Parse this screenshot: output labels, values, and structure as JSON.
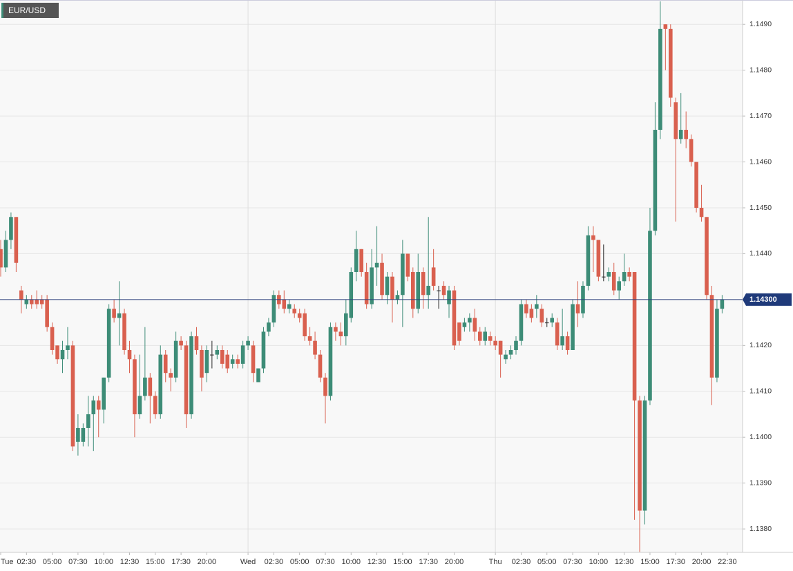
{
  "chart_data": {
    "type": "candlestick",
    "title": "EUR/USD",
    "categories": [
      "Tue",
      null,
      null,
      null,
      null,
      "02:30",
      null,
      null,
      null,
      null,
      "05:00",
      null,
      null,
      null,
      null,
      "07:30",
      null,
      null,
      null,
      null,
      "10:00",
      null,
      null,
      null,
      null,
      "12:30",
      null,
      null,
      null,
      null,
      "15:00",
      null,
      null,
      null,
      null,
      "17:30",
      null,
      null,
      null,
      null,
      "20:00",
      null,
      null,
      null,
      null,
      null,
      null,
      null,
      "Wed",
      null,
      null,
      null,
      null,
      "02:30",
      null,
      null,
      null,
      null,
      "05:00",
      null,
      null,
      null,
      null,
      "07:30",
      null,
      null,
      null,
      null,
      "10:00",
      null,
      null,
      null,
      null,
      "12:30",
      null,
      null,
      null,
      null,
      "15:00",
      null,
      null,
      null,
      null,
      "17:30",
      null,
      null,
      null,
      null,
      "20:00",
      null,
      null,
      null,
      null,
      null,
      null,
      null,
      "Thu",
      null,
      null,
      null,
      null,
      "02:30",
      null,
      null,
      null,
      null,
      "05:00",
      null,
      null,
      null,
      null,
      "07:30",
      null,
      null,
      null,
      null,
      "10:00",
      null,
      null,
      null,
      null,
      "12:30",
      null,
      null,
      null,
      null,
      "15:00",
      null,
      null,
      null,
      null,
      "17:30",
      null,
      null,
      null,
      null,
      "20:00",
      null,
      null,
      null,
      null,
      "22:30"
    ],
    "open": [
      1.1441,
      1.1437,
      1.1443,
      1.1448,
      1.1432,
      1.1429,
      1.143,
      1.143,
      1.143,
      1.143,
      1.1424,
      1.142,
      1.1417,
      1.1419,
      1.142,
      1.1399,
      1.1399,
      1.1402,
      1.1405,
      1.1408,
      1.1406,
      1.1413,
      1.1428,
      1.1426,
      1.1427,
      1.1419,
      1.1417,
      1.1405,
      1.1409,
      1.1413,
      1.1409,
      1.1405,
      1.1418,
      1.1414,
      1.1413,
      1.1421,
      1.142,
      1.1405,
      1.1422,
      1.1419,
      1.1414,
      1.1418,
      1.1418,
      1.1419,
      1.1418,
      1.1416,
      1.1417,
      1.1416,
      1.142,
      1.142,
      1.1412,
      1.1415,
      1.1423,
      1.1425,
      1.1431,
      1.143,
      1.1428,
      1.1428,
      1.1427,
      1.1427,
      1.1422,
      1.1421,
      1.1418,
      1.1413,
      1.1409,
      1.1424,
      1.1423,
      1.1422,
      1.1426,
      1.1436,
      1.1441,
      1.1436,
      1.1429,
      1.1437,
      1.1438,
      1.1431,
      1.1435,
      1.143,
      1.1431,
      1.144,
      1.1436,
      1.1428,
      1.1436,
      1.1431,
      1.1437,
      1.1432,
      1.1433,
      1.1429,
      1.1432,
      1.1425,
      1.1424,
      1.1425,
      1.1426,
      1.1423,
      1.1421,
      1.1422,
      1.1421,
      1.1421,
      1.1417,
      1.1418,
      1.1419,
      1.1421,
      1.1429,
      1.1428,
      1.1428,
      1.1428,
      1.1425,
      1.1425,
      1.1425,
      1.142,
      1.1422,
      1.1419,
      1.1429,
      1.1427,
      1.1433,
      1.1444,
      1.1443,
      1.1435,
      1.1435,
      1.1436,
      1.1432,
      1.1434,
      1.1436,
      1.1436,
      1.1408,
      1.1384,
      1.1408,
      1.1445,
      1.1467,
      1.149,
      1.1489,
      1.1473,
      1.1465,
      1.1467,
      1.1465,
      1.146,
      1.145,
      1.1448,
      1.1431,
      1.1413,
      1.1428,
      null
    ],
    "high": [
      1.1443,
      1.1445,
      1.1449,
      1.1448,
      1.1433,
      1.1431,
      1.1431,
      1.1432,
      1.1431,
      1.1431,
      1.1425,
      1.142,
      1.1421,
      1.1424,
      1.1421,
      1.1405,
      1.1403,
      1.1409,
      1.1409,
      1.1409,
      1.1413,
      1.1429,
      1.143,
      1.1434,
      1.1428,
      1.1421,
      1.1418,
      1.1418,
      1.1424,
      1.1414,
      1.141,
      1.142,
      1.1419,
      1.1415,
      1.1423,
      1.1422,
      1.1421,
      1.1423,
      1.1424,
      1.142,
      1.142,
      1.1421,
      1.142,
      1.142,
      1.1419,
      1.1418,
      1.1418,
      1.1421,
      1.1422,
      1.1421,
      1.1415,
      1.1424,
      1.1426,
      1.1432,
      1.1432,
      1.1432,
      1.143,
      1.1429,
      1.1428,
      1.1428,
      1.1424,
      1.1423,
      1.1419,
      1.1414,
      1.1425,
      1.1425,
      1.1425,
      1.143,
      1.1437,
      1.1445,
      1.1441,
      1.1438,
      1.1441,
      1.1446,
      1.144,
      1.1436,
      1.1436,
      1.1432,
      1.1443,
      1.144,
      1.1437,
      1.144,
      1.1437,
      1.1448,
      1.1441,
      1.1433,
      1.1434,
      1.1433,
      1.1433,
      1.1425,
      1.1426,
      1.1427,
      1.1428,
      1.1424,
      1.1424,
      1.1423,
      1.1422,
      1.1421,
      1.1419,
      1.142,
      1.1422,
      1.143,
      1.143,
      1.1429,
      1.1431,
      1.1429,
      1.1426,
      1.1427,
      1.1426,
      1.1428,
      1.1423,
      1.143,
      1.1434,
      1.1434,
      1.1446,
      1.1446,
      1.1443,
      1.1442,
      1.1437,
      1.1438,
      1.1435,
      1.144,
      1.1437,
      1.1436,
      1.1409,
      1.1409,
      1.145,
      1.1473,
      1.1495,
      1.149,
      1.149,
      1.1474,
      1.1475,
      1.1471,
      1.1466,
      1.146,
      1.1455,
      1.1448,
      1.1433,
      1.143,
      1.1431,
      null
    ],
    "low": [
      1.1435,
      1.1436,
      1.1441,
      1.1436,
      1.1427,
      1.1428,
      1.1428,
      1.1428,
      1.1428,
      1.1423,
      1.1418,
      1.1416,
      1.1414,
      1.1417,
      1.1397,
      1.1396,
      1.1398,
      1.1398,
      1.1397,
      1.14,
      1.1403,
      1.1412,
      1.1425,
      1.142,
      1.1418,
      1.1414,
      1.14,
      1.1404,
      1.1408,
      1.1403,
      1.1404,
      1.1404,
      1.1412,
      1.141,
      1.1412,
      1.1419,
      1.1402,
      1.1404,
      1.1418,
      1.141,
      1.1412,
      1.1415,
      1.1417,
      1.1415,
      1.1414,
      1.1415,
      1.1415,
      1.1415,
      1.1419,
      1.1412,
      1.1412,
      1.1414,
      1.1422,
      1.1424,
      1.1428,
      1.1427,
      1.1427,
      1.1426,
      1.1425,
      1.1421,
      1.142,
      1.1417,
      1.1412,
      1.1403,
      1.1408,
      1.1421,
      1.142,
      1.142,
      1.1425,
      1.1434,
      1.1435,
      1.1428,
      1.1428,
      1.1433,
      1.143,
      1.1429,
      1.1425,
      1.1429,
      1.1424,
      1.1434,
      1.1426,
      1.1427,
      1.1428,
      1.1428,
      1.1432,
      1.1428,
      1.143,
      1.1426,
      1.1419,
      1.142,
      1.1423,
      1.1423,
      1.1421,
      1.142,
      1.142,
      1.142,
      1.1419,
      1.1413,
      1.1416,
      1.1417,
      1.1418,
      1.142,
      1.1426,
      1.1425,
      1.1426,
      1.1424,
      1.1424,
      1.1424,
      1.1419,
      1.1419,
      1.1418,
      1.1419,
      1.1424,
      1.1426,
      1.1432,
      1.1436,
      1.1434,
      1.1434,
      1.1434,
      1.1431,
      1.143,
      1.1433,
      1.1434,
      1.1382,
      1.1375,
      1.1381,
      1.1407,
      1.1444,
      1.1465,
      1.148,
      1.1472,
      1.1447,
      1.1464,
      1.1463,
      1.1459,
      1.1449,
      1.1447,
      1.143,
      1.1407,
      1.1412,
      1.1427,
      null
    ],
    "close": [
      1.1437,
      1.1443,
      1.1448,
      1.1438,
      1.143,
      1.143,
      1.1429,
      1.1429,
      1.1429,
      1.1424,
      1.1419,
      1.1417,
      1.1419,
      1.142,
      1.1398,
      1.1402,
      1.1402,
      1.1405,
      1.1408,
      1.1406,
      1.1413,
      1.1428,
      1.1426,
      1.1427,
      1.1419,
      1.1417,
      1.1405,
      1.1409,
      1.1413,
      1.1409,
      1.1405,
      1.1418,
      1.1414,
      1.1413,
      1.1421,
      1.142,
      1.1405,
      1.1422,
      1.1419,
      1.1413,
      1.1419,
      1.1418,
      1.1419,
      1.1416,
      1.1415,
      1.1417,
      1.1416,
      1.142,
      1.1421,
      1.1414,
      1.1415,
      1.1423,
      1.1425,
      1.1431,
      1.1429,
      1.1428,
      1.1429,
      1.1427,
      1.1426,
      1.1422,
      1.1421,
      1.1418,
      1.1413,
      1.1409,
      1.1424,
      1.1423,
      1.1422,
      1.1427,
      1.1436,
      1.1441,
      1.1436,
      1.1429,
      1.1437,
      1.1438,
      1.1431,
      1.1435,
      1.143,
      1.1431,
      1.144,
      1.1435,
      1.1428,
      1.1436,
      1.1431,
      1.1433,
      1.1433,
      1.1432,
      1.1431,
      1.1432,
      1.142,
      1.1421,
      1.1425,
      1.1426,
      1.1423,
      1.1421,
      1.1423,
      1.1421,
      1.142,
      1.1418,
      1.1418,
      1.1419,
      1.1421,
      1.1429,
      1.1427,
      1.1426,
      1.1429,
      1.1425,
      1.1425,
      1.1426,
      1.142,
      1.1422,
      1.1419,
      1.1429,
      1.1427,
      1.1433,
      1.1444,
      1.1443,
      1.1435,
      1.1435,
      1.1436,
      1.1432,
      1.1434,
      1.1436,
      1.1435,
      1.1408,
      1.1384,
      1.1408,
      1.1445,
      1.1467,
      1.1489,
      1.1489,
      1.1474,
      1.1465,
      1.1467,
      1.1465,
      1.146,
      1.145,
      1.1448,
      1.1431,
      1.1413,
      1.1428,
      1.143,
      null
    ],
    "up_color": "#3d8c77",
    "down_color": "#d9604f",
    "flat_color": "#222222",
    "ylim": [
      1.13749,
      1.14953
    ],
    "yticks": [
      {
        "value": 1.138,
        "label": "1.1380"
      },
      {
        "value": 1.139,
        "label": "1.1390"
      },
      {
        "value": 1.14,
        "label": "1.1400"
      },
      {
        "value": 1.141,
        "label": "1.1410"
      },
      {
        "value": 1.142,
        "label": "1.1420"
      },
      {
        "value": 1.143,
        "label": "1.1430"
      },
      {
        "value": 1.144,
        "label": "1.1440"
      },
      {
        "value": 1.145,
        "label": "1.1450"
      },
      {
        "value": 1.146,
        "label": "1.1460"
      },
      {
        "value": 1.147,
        "label": "1.1470"
      },
      {
        "value": 1.148,
        "label": "1.1480"
      },
      {
        "value": 1.149,
        "label": "1.1490"
      }
    ],
    "last_price": {
      "value": 1.143,
      "label": "1.14300"
    },
    "grid": true
  }
}
